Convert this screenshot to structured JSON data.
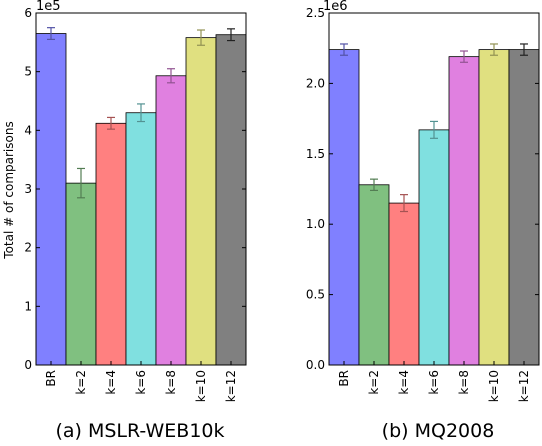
{
  "chart_data": [
    {
      "type": "bar",
      "panel": "a",
      "caption": "(a) MSLR-WEB10k",
      "ylabel": "Total # of comparisons",
      "multiplier_label": "1e5",
      "categories": [
        "BR",
        "k=2",
        "k=4",
        "k=6",
        "k=8",
        "k=10",
        "k=12"
      ],
      "values": [
        5.65,
        3.1,
        4.12,
        4.3,
        4.93,
        5.58,
        5.63
      ],
      "errors": [
        0.1,
        0.25,
        0.1,
        0.15,
        0.12,
        0.13,
        0.1
      ],
      "colors": [
        "#8080ff",
        "#80c080",
        "#ff8080",
        "#80e0e0",
        "#e080e0",
        "#e0e080",
        "#808080"
      ],
      "ylim": [
        0,
        6
      ],
      "yticks": [
        0,
        1,
        2,
        3,
        4,
        5,
        6
      ],
      "ytick_labels": [
        "0",
        "1",
        "2",
        "3",
        "4",
        "5",
        "6"
      ]
    },
    {
      "type": "bar",
      "panel": "b",
      "caption": "(b) MQ2008",
      "ylabel": "",
      "multiplier_label": "1e6",
      "categories": [
        "BR",
        "k=2",
        "k=4",
        "k=6",
        "k=8",
        "k=10",
        "k=12"
      ],
      "values": [
        2.24,
        1.28,
        1.15,
        1.67,
        2.19,
        2.24,
        2.24
      ],
      "errors": [
        0.04,
        0.04,
        0.06,
        0.06,
        0.04,
        0.04,
        0.04
      ],
      "colors": [
        "#8080ff",
        "#80c080",
        "#ff8080",
        "#80e0e0",
        "#e080e0",
        "#e0e080",
        "#808080"
      ],
      "ylim": [
        0,
        2.5
      ],
      "yticks": [
        0,
        0.5,
        1,
        1.5,
        2,
        2.5
      ],
      "ytick_labels": [
        "0.0",
        "0.5",
        "1.0",
        "1.5",
        "2.0",
        "2.5"
      ]
    }
  ]
}
